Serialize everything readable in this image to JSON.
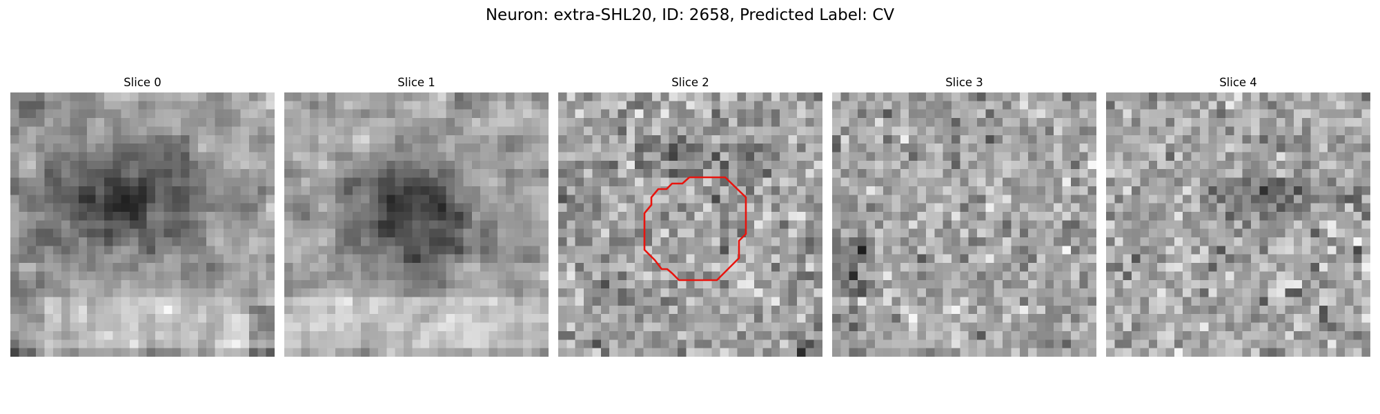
{
  "figure": {
    "title": "Neuron: extra-SHL20, ID: 2658, Predicted Label: CV"
  },
  "slices": [
    {
      "title": "Slice 0",
      "pattern": "dark-blob",
      "seed": 11
    },
    {
      "title": "Slice 1",
      "pattern": "dark-blob",
      "seed": 23
    },
    {
      "title": "Slice 2",
      "pattern": "noise-band",
      "seed": 37,
      "has_contour": true
    },
    {
      "title": "Slice 3",
      "pattern": "noise",
      "seed": 53
    },
    {
      "title": "Slice 4",
      "pattern": "dark-band",
      "seed": 71
    }
  ],
  "contour": {
    "slice": "Slice 2",
    "color": "#e8140e"
  },
  "colormap": "gray"
}
